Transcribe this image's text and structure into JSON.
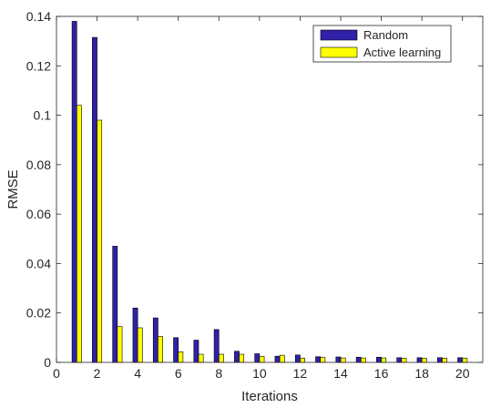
{
  "chart_data": {
    "type": "bar",
    "xlabel": "Iterations",
    "ylabel": "RMSE",
    "xlim": [
      0,
      21
    ],
    "ylim": [
      0,
      0.14
    ],
    "xticks": [
      0,
      2,
      4,
      6,
      8,
      10,
      12,
      14,
      16,
      18,
      20
    ],
    "yticks": [
      0,
      0.02,
      0.04,
      0.06,
      0.08,
      0.1,
      0.12,
      0.14
    ],
    "xtick_labels": [
      "0",
      "2",
      "4",
      "6",
      "8",
      "10",
      "12",
      "14",
      "16",
      "18",
      "20"
    ],
    "ytick_labels": [
      "0",
      "0.02",
      "0.04",
      "0.06",
      "0.08",
      "0.1",
      "0.12",
      "0.14"
    ],
    "grid": false,
    "legend_position": "top-right",
    "categories": [
      1,
      2,
      3,
      4,
      5,
      6,
      7,
      8,
      9,
      10,
      11,
      12,
      13,
      14,
      15,
      16,
      17,
      18,
      19,
      20
    ],
    "series": [
      {
        "name": "Random",
        "color": "#3021a8",
        "values": [
          0.138,
          0.1315,
          0.047,
          0.022,
          0.018,
          0.01,
          0.009,
          0.0133,
          0.0045,
          0.0035,
          0.0025,
          0.003,
          0.0023,
          0.0022,
          0.0021,
          0.0021,
          0.0019,
          0.0019,
          0.0019,
          0.0019
        ]
      },
      {
        "name": "Active learning",
        "color": "#ffff00",
        "values": [
          0.104,
          0.098,
          0.0145,
          0.014,
          0.0105,
          0.0043,
          0.0033,
          0.0033,
          0.0033,
          0.0024,
          0.0029,
          0.0017,
          0.002,
          0.0018,
          0.0018,
          0.0018,
          0.0017,
          0.0017,
          0.0017,
          0.0017
        ]
      }
    ]
  }
}
